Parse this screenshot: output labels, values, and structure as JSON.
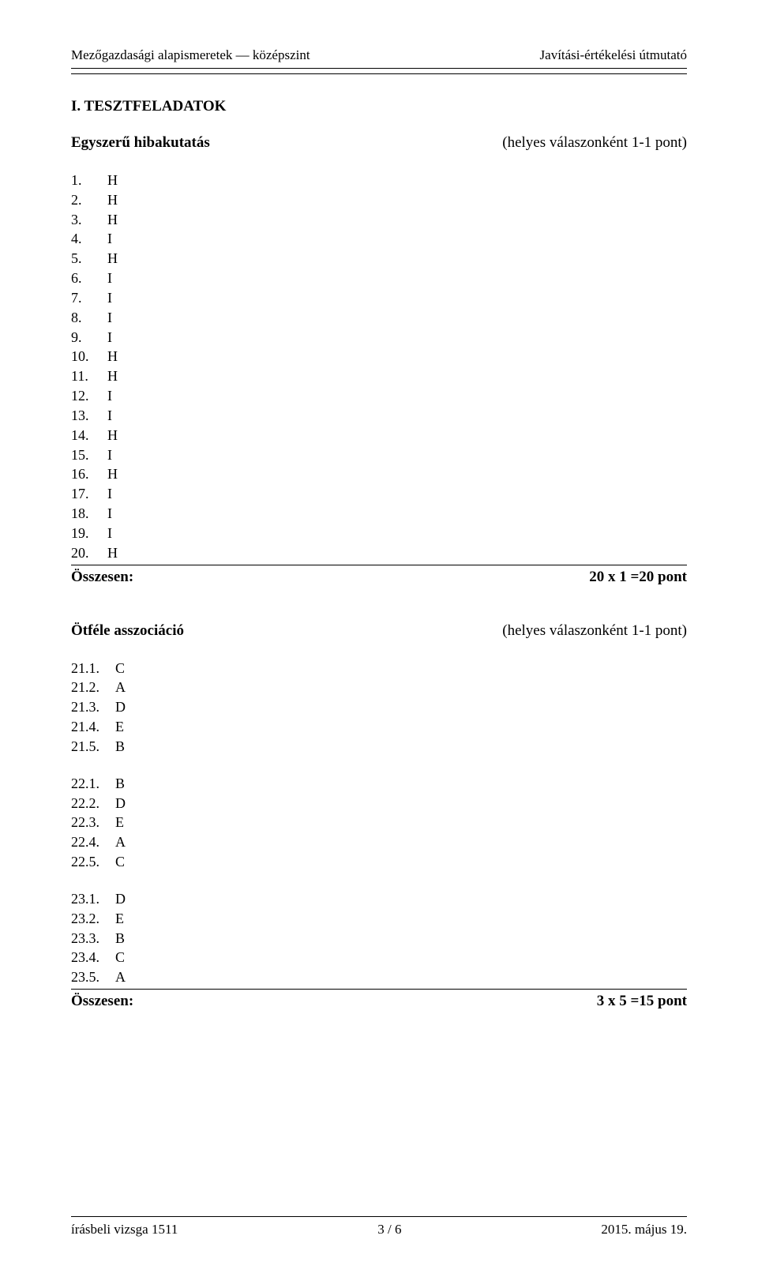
{
  "header": {
    "left": "Mezőgazdasági alapismeretek — középszint",
    "right": "Javítási-értékelési útmutató"
  },
  "section_title": "I. TESZTFELADATOK",
  "task1": {
    "title": "Egyszerű hibakutatás",
    "note": "(helyes válaszonként 1-1 pont)",
    "answers": [
      {
        "n": "1.",
        "v": "H"
      },
      {
        "n": "2.",
        "v": "H"
      },
      {
        "n": "3.",
        "v": "H"
      },
      {
        "n": "4.",
        "v": "I"
      },
      {
        "n": "5.",
        "v": "H"
      },
      {
        "n": "6.",
        "v": "I"
      },
      {
        "n": "7.",
        "v": "I"
      },
      {
        "n": "8.",
        "v": "I"
      },
      {
        "n": "9.",
        "v": "I"
      },
      {
        "n": "10.",
        "v": "H"
      },
      {
        "n": "11.",
        "v": "H"
      },
      {
        "n": "12.",
        "v": "I"
      },
      {
        "n": "13.",
        "v": "I"
      },
      {
        "n": "14.",
        "v": "H"
      },
      {
        "n": "15.",
        "v": "I"
      },
      {
        "n": "16.",
        "v": "H"
      },
      {
        "n": "17.",
        "v": "I"
      },
      {
        "n": "18.",
        "v": "I"
      },
      {
        "n": "19.",
        "v": "I"
      },
      {
        "n": "20.",
        "v": "H"
      }
    ],
    "total_label": "Összesen:",
    "total_value": "20 x 1 =20 pont"
  },
  "task2": {
    "title": "Ötféle asszociáció",
    "note": "(helyes válaszonként 1-1 pont)",
    "groups": [
      [
        {
          "n": "21.1.",
          "v": "C"
        },
        {
          "n": "21.2.",
          "v": "A"
        },
        {
          "n": "21.3.",
          "v": "D"
        },
        {
          "n": "21.4.",
          "v": "E"
        },
        {
          "n": "21.5.",
          "v": "B"
        }
      ],
      [
        {
          "n": "22.1.",
          "v": "B"
        },
        {
          "n": "22.2.",
          "v": "D"
        },
        {
          "n": "22.3.",
          "v": "E"
        },
        {
          "n": "22.4.",
          "v": "A"
        },
        {
          "n": "22.5.",
          "v": "C"
        }
      ],
      [
        {
          "n": "23.1.",
          "v": "D"
        },
        {
          "n": "23.2.",
          "v": "E"
        },
        {
          "n": "23.3.",
          "v": "B"
        },
        {
          "n": "23.4.",
          "v": "C"
        },
        {
          "n": "23.5.",
          "v": "A"
        }
      ]
    ],
    "total_label": "Összesen:",
    "total_value": "3 x 5 =15 pont"
  },
  "footer": {
    "left": "írásbeli vizsga 1511",
    "center": "3 / 6",
    "right": "2015. május 19."
  }
}
